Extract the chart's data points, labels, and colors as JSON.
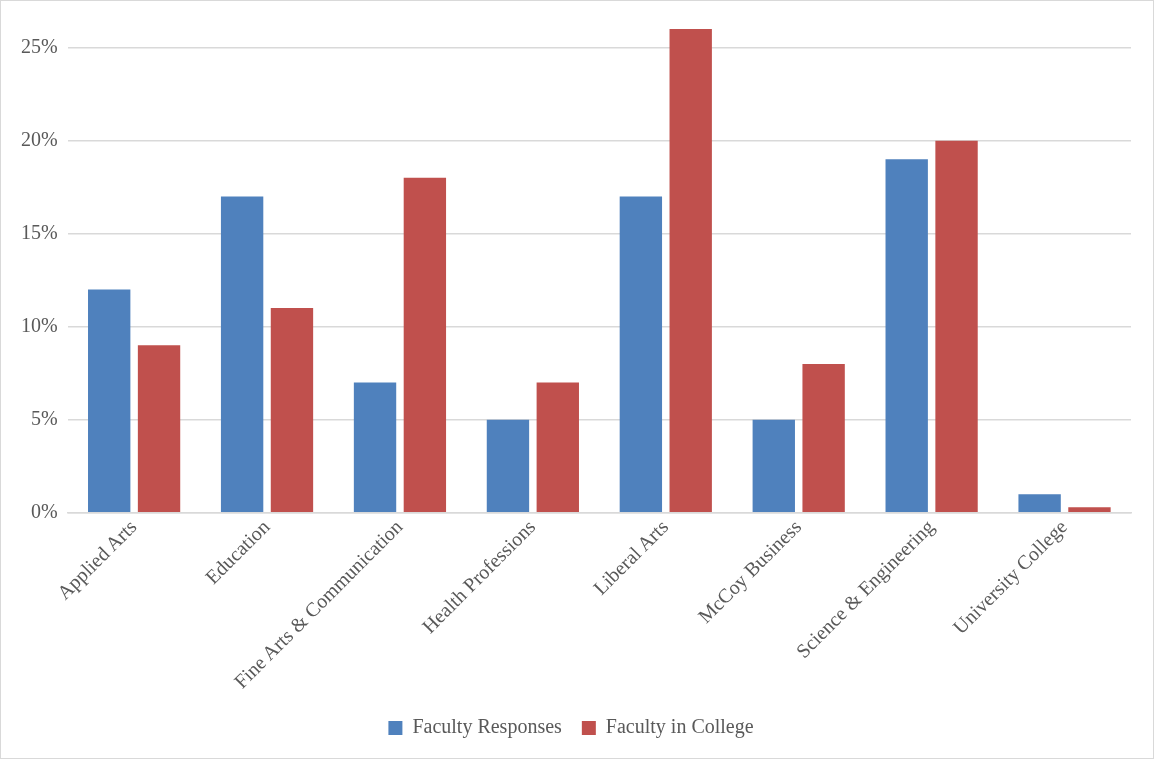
{
  "chart_data": {
    "type": "bar",
    "categories": [
      "Applied Arts",
      "Education",
      "Fine Arts & Communication",
      "Health Professions",
      "Liberal Arts",
      "McCoy Business",
      "Science & Engineering",
      "University College"
    ],
    "series": [
      {
        "name": "Faculty Responses",
        "color": "#4f81bd",
        "values": [
          12,
          17,
          7,
          5,
          17,
          5,
          19,
          1
        ]
      },
      {
        "name": "Faculty in College",
        "color": "#c0504d",
        "values": [
          9,
          11,
          18,
          7,
          26,
          8,
          20,
          0.3
        ]
      }
    ],
    "ylim": [
      0,
      26
    ],
    "yticks": [
      {
        "value": 0,
        "label": "0%"
      },
      {
        "value": 5,
        "label": "5%"
      },
      {
        "value": 10,
        "label": "10%"
      },
      {
        "value": 15,
        "label": "15%"
      },
      {
        "value": 20,
        "label": "20%"
      },
      {
        "value": 25,
        "label": "25%"
      }
    ],
    "grid": "y",
    "legend": "bottom"
  }
}
